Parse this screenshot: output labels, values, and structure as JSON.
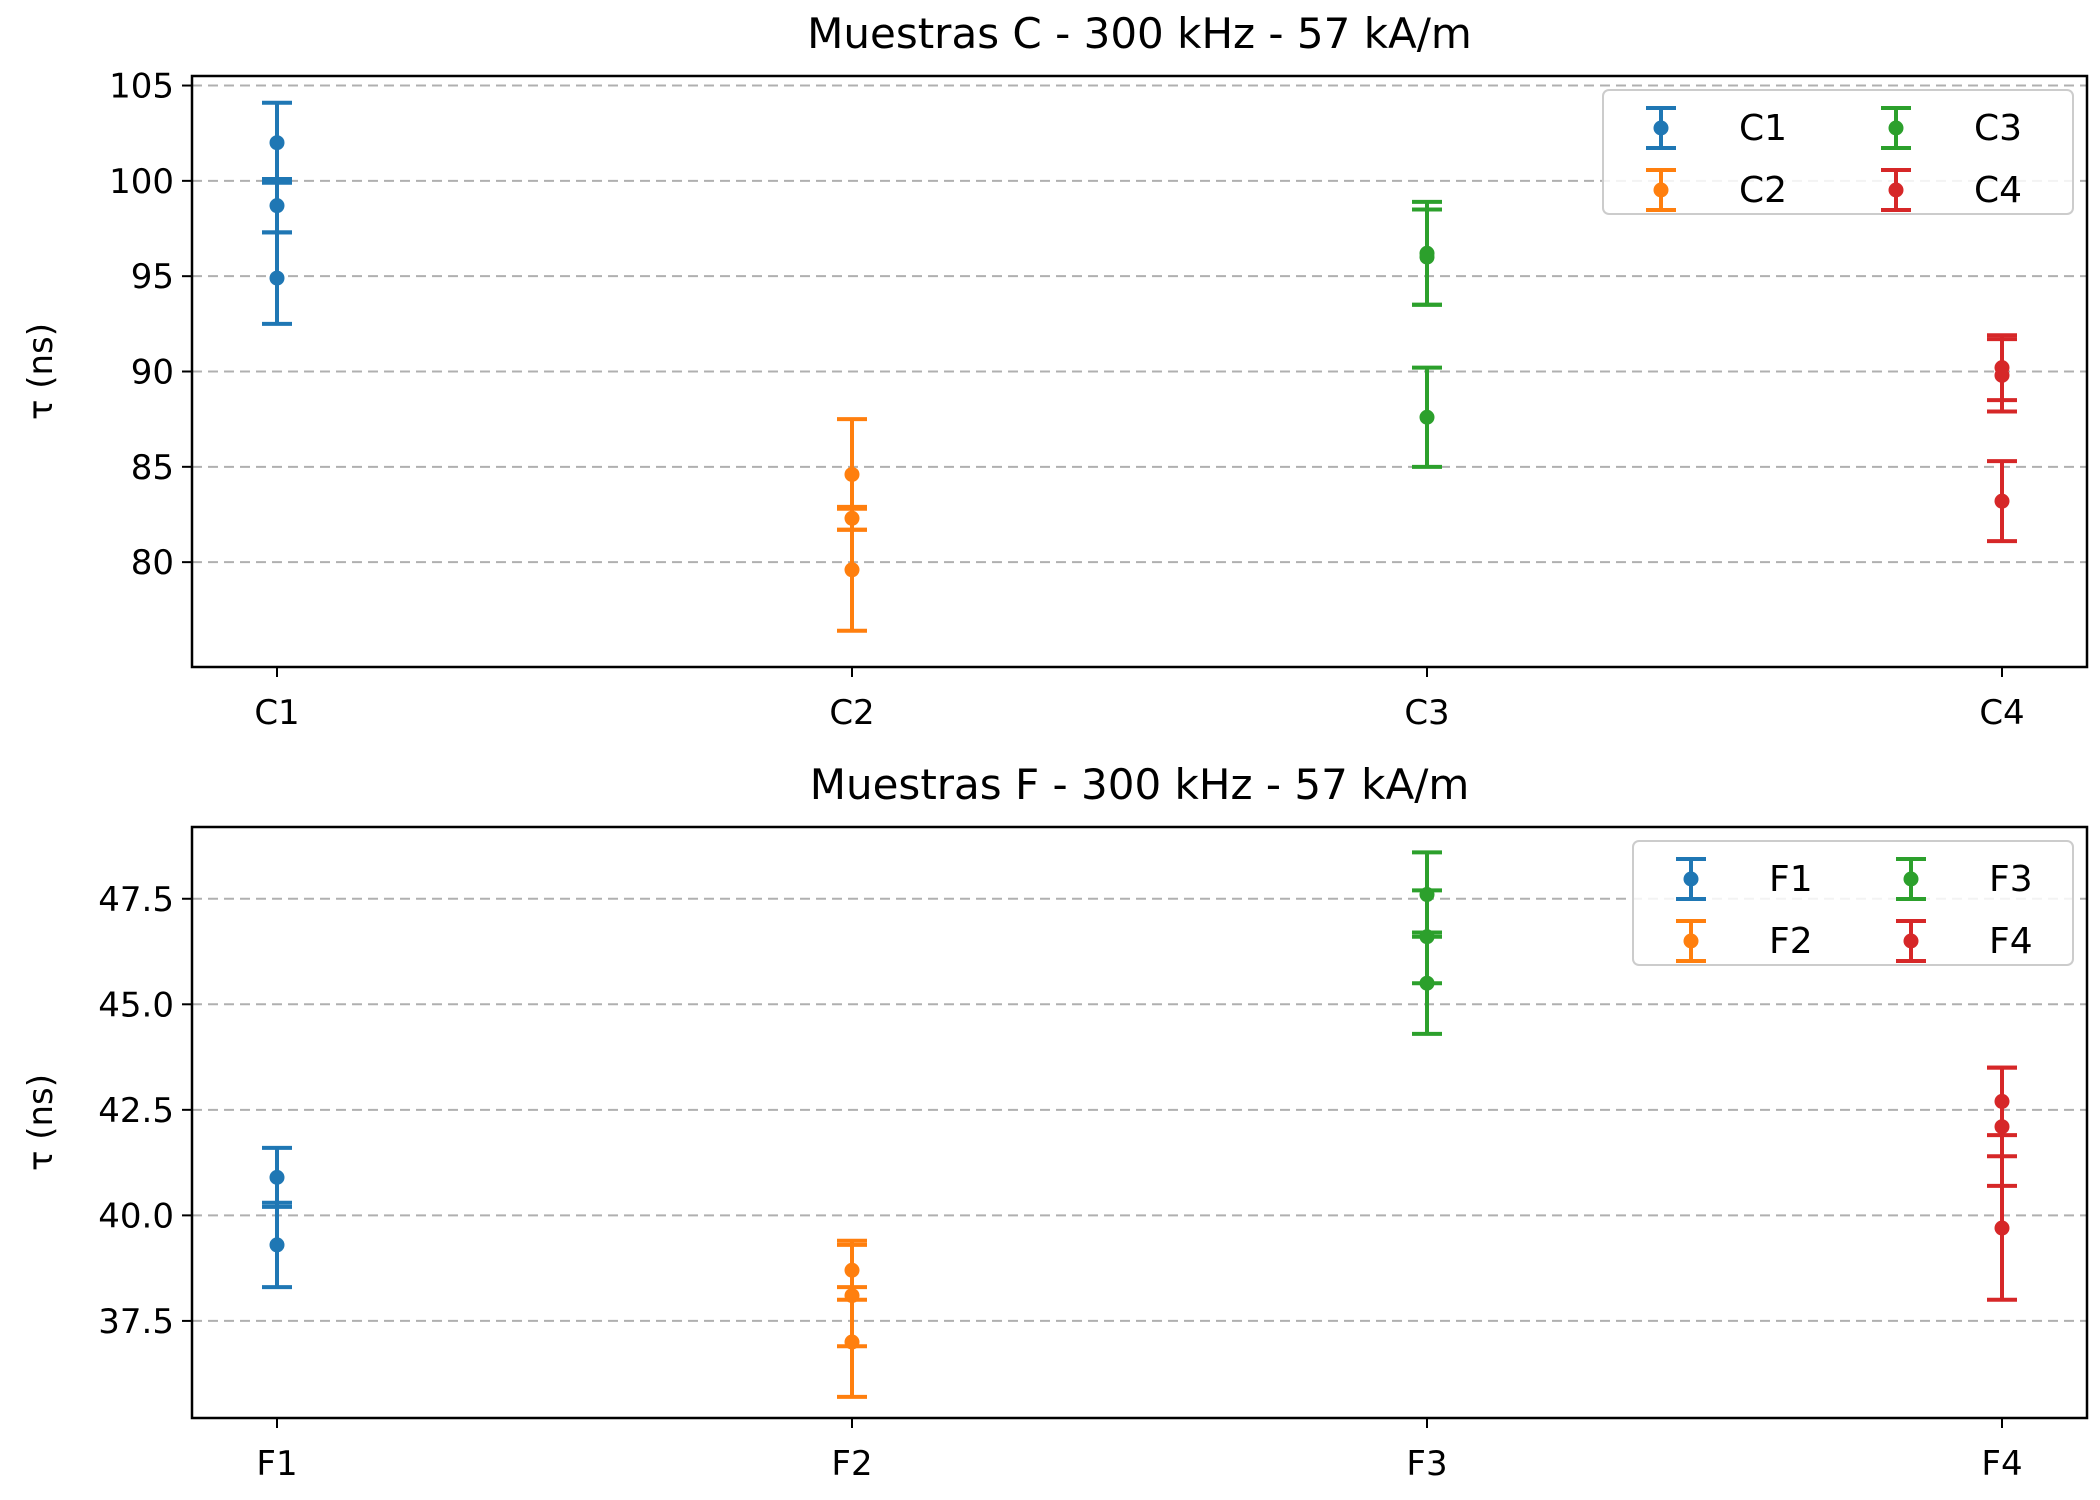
{
  "chart_data": [
    {
      "type": "scatter",
      "error_bars": true,
      "title": "Muestras C - 300 kHz - 57 kA/m",
      "xlabel": "",
      "ylabel": "τ (ns)",
      "categories": [
        "C1",
        "C2",
        "C3",
        "C4"
      ],
      "ylim": [
        74.5,
        105.5
      ],
      "yticks": [
        80,
        85,
        90,
        95,
        100,
        105
      ],
      "grid": "y dashed",
      "legend": {
        "placement": "top-right",
        "columns": 2
      },
      "series": [
        {
          "name": "C1",
          "color": "#1f77b4",
          "x": "C1",
          "points": [
            {
              "y": 102.0,
              "err": 2.1
            },
            {
              "y": 98.7,
              "err": 1.4
            },
            {
              "y": 94.9,
              "err": 2.4
            }
          ]
        },
        {
          "name": "C2",
          "color": "#ff7f0e",
          "x": "C2",
          "points": [
            {
              "y": 84.6,
              "err": 2.9
            },
            {
              "y": 82.3,
              "err": 0.6
            },
            {
              "y": 79.6,
              "err": 3.2
            }
          ]
        },
        {
          "name": "C3",
          "color": "#2ca02c",
          "x": "C3",
          "points": [
            {
              "y": 96.2,
              "err": 2.7
            },
            {
              "y": 96.0,
              "err": 2.5
            },
            {
              "y": 87.6,
              "err": 2.6
            }
          ]
        },
        {
          "name": "C4",
          "color": "#d62728",
          "x": "C4",
          "points": [
            {
              "y": 90.2,
              "err": 1.7
            },
            {
              "y": 89.8,
              "err": 1.9
            },
            {
              "y": 83.2,
              "err": 2.1
            }
          ]
        }
      ]
    },
    {
      "type": "scatter",
      "error_bars": true,
      "title": "Muestras F - 300 kHz - 57 kA/m",
      "xlabel": "",
      "ylabel": "τ (ns)",
      "categories": [
        "F1",
        "F2",
        "F3",
        "F4"
      ],
      "ylim": [
        35.2,
        49.2
      ],
      "yticks": [
        37.5,
        40.0,
        42.5,
        45.0,
        47.5
      ],
      "grid": "y dashed",
      "legend": {
        "placement": "top-right",
        "columns": 2
      },
      "series": [
        {
          "name": "F1",
          "color": "#1f77b4",
          "x": "F1",
          "points": [
            {
              "y": 40.9,
              "err": 0.7
            },
            {
              "y": 39.3,
              "err": 1.0
            }
          ]
        },
        {
          "name": "F2",
          "color": "#ff7f0e",
          "x": "F2",
          "points": [
            {
              "y": 38.7,
              "err": 0.7
            },
            {
              "y": 38.1,
              "err": 1.2
            },
            {
              "y": 37.0,
              "err": 1.3
            }
          ]
        },
        {
          "name": "F3",
          "color": "#2ca02c",
          "x": "F3",
          "points": [
            {
              "y": 47.6,
              "err": 1.0
            },
            {
              "y": 46.6,
              "err": 1.1
            },
            {
              "y": 45.5,
              "err": 1.2
            }
          ]
        },
        {
          "name": "F4",
          "color": "#d62728",
          "x": "F4",
          "points": [
            {
              "y": 42.7,
              "err": 0.8
            },
            {
              "y": 42.1,
              "err": 1.4
            },
            {
              "y": 39.7,
              "err": 1.7
            }
          ]
        }
      ]
    }
  ]
}
